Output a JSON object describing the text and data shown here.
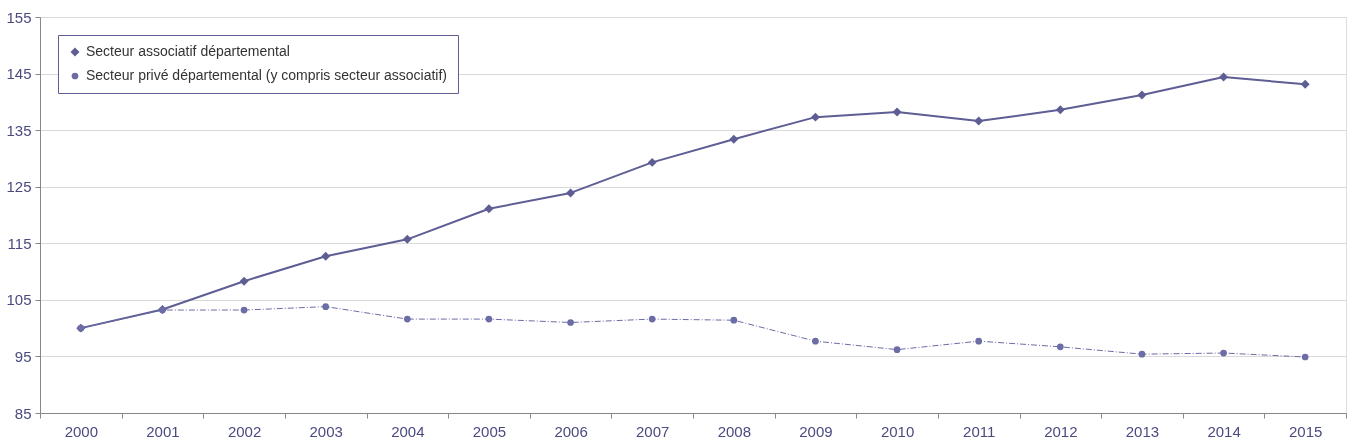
{
  "chart_data": {
    "type": "line",
    "categories": [
      "2000",
      "2001",
      "2002",
      "2003",
      "2004",
      "2005",
      "2006",
      "2007",
      "2008",
      "2009",
      "2010",
      "2011",
      "2012",
      "2013",
      "2014",
      "2015"
    ],
    "series": [
      {
        "name": "Secteur associatif départemental",
        "color": "#5e5e95",
        "marker": "diamond",
        "line_style": "solid",
        "values": [
          100,
          103.3,
          108.3,
          112.7,
          115.7,
          121.1,
          123.9,
          129.3,
          133.4,
          137.3,
          138.2,
          136.6,
          138.6,
          141.2,
          144.4,
          143.1
        ]
      },
      {
        "name": "Secteur privé départemental (y compris secteur associatif)",
        "color": "#6c6ca6",
        "marker": "circle",
        "line_style": "dashdot",
        "values": [
          100,
          103.2,
          103.2,
          103.8,
          101.6,
          101.6,
          101.0,
          101.6,
          101.4,
          97.7,
          96.2,
          97.7,
          96.7,
          95.4,
          95.6,
          94.9
        ]
      }
    ],
    "ylim": [
      85,
      155
    ],
    "yticks": [
      85,
      95,
      105,
      115,
      125,
      135,
      145,
      155
    ],
    "grid": "y",
    "legend": "top left"
  }
}
